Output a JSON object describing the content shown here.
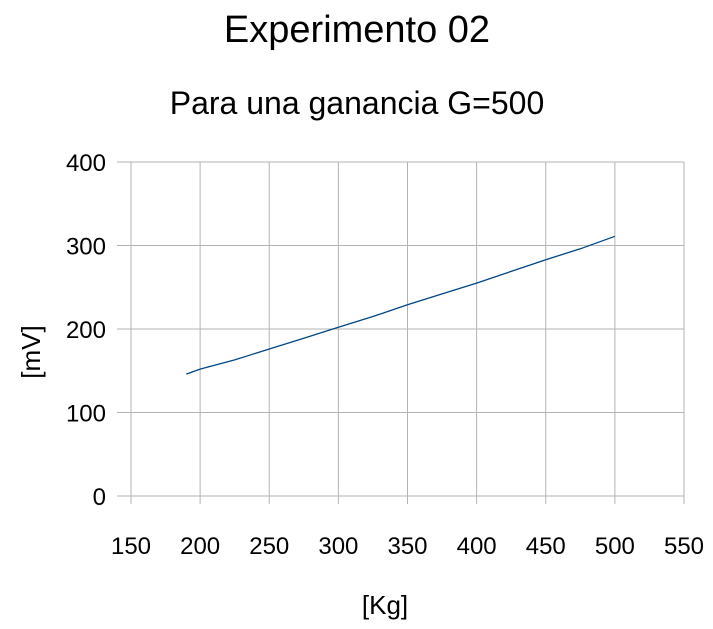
{
  "chart_data": {
    "type": "line",
    "title": "Experimento 02",
    "subtitle": "Para una ganancia G=500",
    "xlabel": "[Kg]",
    "ylabel": "[mV]",
    "xlim": [
      150,
      550
    ],
    "ylim": [
      0,
      400
    ],
    "xticks": [
      150,
      200,
      250,
      300,
      350,
      400,
      450,
      500,
      550
    ],
    "yticks": [
      0,
      100,
      200,
      300,
      400
    ],
    "grid": true,
    "legend": "none",
    "series": [
      {
        "color": "#004586",
        "x": [
          190,
          200,
          225,
          250,
          275,
          300,
          325,
          350,
          375,
          400,
          425,
          450,
          475,
          500
        ],
        "y": [
          146,
          152,
          163,
          176,
          189,
          202,
          215,
          229,
          242,
          255,
          269,
          283,
          296,
          311
        ]
      }
    ]
  }
}
